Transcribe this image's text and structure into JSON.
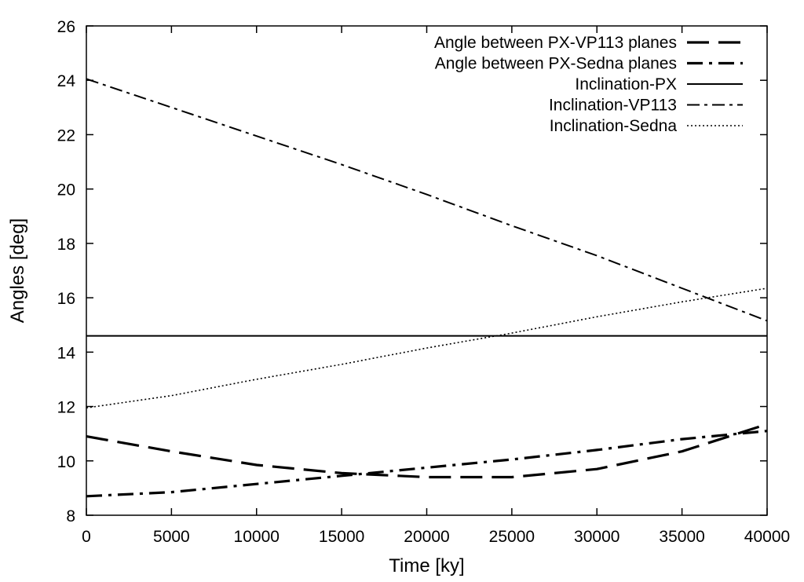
{
  "chart_data": {
    "type": "line",
    "title": "",
    "xlabel": "Time [ky]",
    "ylabel": "Angles [deg]",
    "xlim": [
      0,
      40000
    ],
    "ylim": [
      8,
      26
    ],
    "xticks": [
      0,
      5000,
      10000,
      15000,
      20000,
      25000,
      30000,
      35000,
      40000
    ],
    "yticks": [
      8,
      10,
      12,
      14,
      16,
      18,
      20,
      22,
      24,
      26
    ],
    "grid": false,
    "legend_position": "top-right",
    "series": [
      {
        "name": "Angle between PX-VP113 planes",
        "style": "long-dash-thick",
        "x": [
          0,
          5000,
          10000,
          15000,
          20000,
          25000,
          30000,
          35000,
          40000
        ],
        "y": [
          10.9,
          10.35,
          9.85,
          9.55,
          9.4,
          9.4,
          9.7,
          10.35,
          11.35
        ]
      },
      {
        "name": "Angle between PX-Sedna planes",
        "style": "dash-dot-thick",
        "x": [
          0,
          5000,
          10000,
          15000,
          20000,
          25000,
          30000,
          35000,
          40000
        ],
        "y": [
          8.7,
          8.85,
          9.15,
          9.45,
          9.75,
          10.05,
          10.4,
          10.8,
          11.1
        ]
      },
      {
        "name": "Inclination-PX",
        "style": "solid",
        "x": [
          0,
          40000
        ],
        "y": [
          14.6,
          14.6
        ]
      },
      {
        "name": "Inclination-VP113",
        "style": "dash-dot-thin",
        "x": [
          0,
          5000,
          10000,
          15000,
          20000,
          25000,
          30000,
          35000,
          40000
        ],
        "y": [
          24.05,
          23.0,
          21.95,
          20.9,
          19.8,
          18.65,
          17.55,
          16.35,
          15.15
        ]
      },
      {
        "name": "Inclination-Sedna",
        "style": "dotted",
        "x": [
          0,
          5000,
          10000,
          15000,
          20000,
          25000,
          30000,
          35000,
          40000
        ],
        "y": [
          11.95,
          12.4,
          13.0,
          13.55,
          14.15,
          14.7,
          15.3,
          15.85,
          16.35
        ]
      }
    ]
  }
}
